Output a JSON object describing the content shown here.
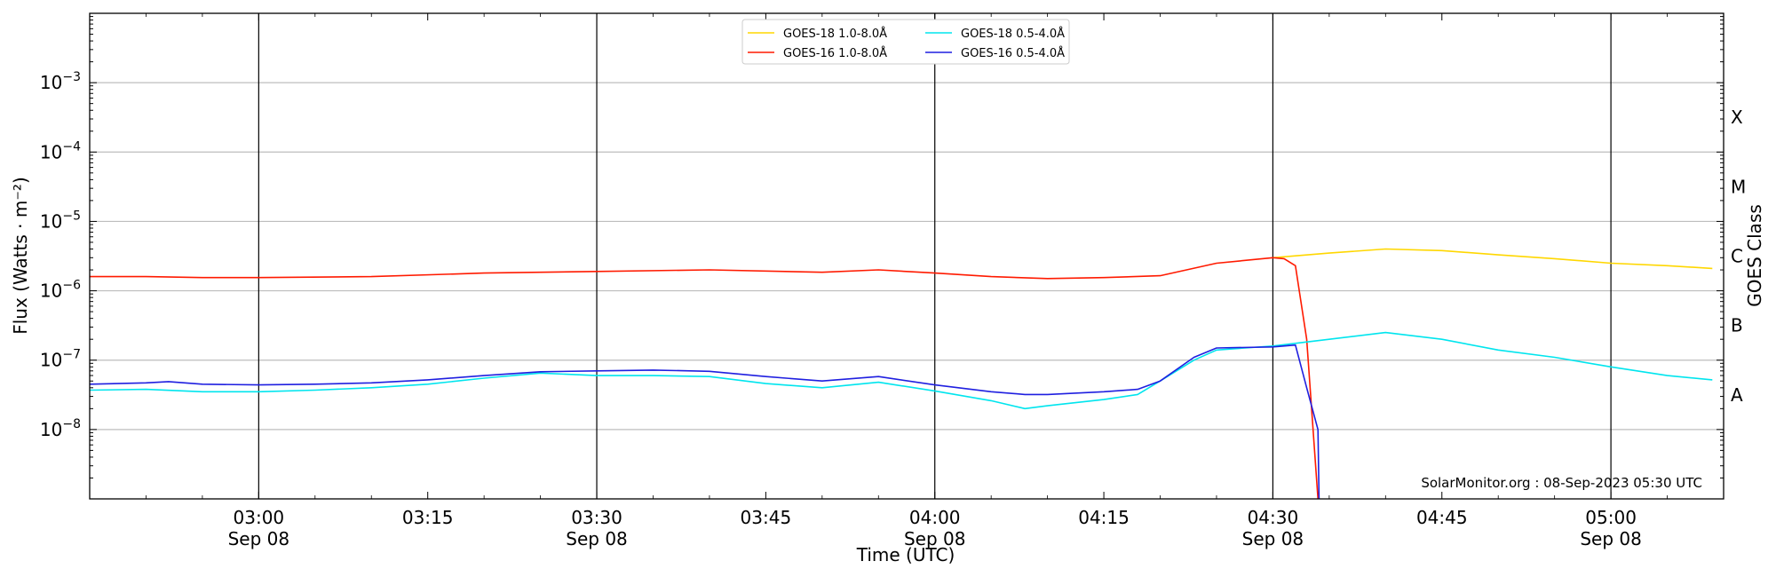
{
  "chart_data": {
    "type": "line",
    "xlabel": "Time (UTC)",
    "ylabel": "Flux (Watts · m⁻²)",
    "right_label": "GOES Class",
    "y_scale": "log",
    "ylim": [
      1e-09,
      0.01
    ],
    "xlim": [
      "2023-09-08 02:45",
      "2023-09-08 05:10"
    ],
    "grid": "horizontal at decades; vertical at half-hours",
    "legend_position": "top-center",
    "credit": "SolarMonitor.org : 08-Sep-2023 05:30 UTC",
    "x_ticks": [
      {
        "time": "03:00",
        "label": "03:00",
        "date": "Sep 08"
      },
      {
        "time": "03:15",
        "label": "03:15",
        "date": ""
      },
      {
        "time": "03:30",
        "label": "03:30",
        "date": "Sep 08"
      },
      {
        "time": "03:45",
        "label": "03:45",
        "date": ""
      },
      {
        "time": "04:00",
        "label": "04:00",
        "date": "Sep 08"
      },
      {
        "time": "04:15",
        "label": "04:15",
        "date": ""
      },
      {
        "time": "04:30",
        "label": "04:30",
        "date": "Sep 08"
      },
      {
        "time": "04:45",
        "label": "04:45",
        "date": ""
      },
      {
        "time": "05:00",
        "label": "05:00",
        "date": "Sep 08"
      }
    ],
    "y_ticks": [
      {
        "exp": -8,
        "base": "10",
        "power": "−8"
      },
      {
        "exp": -7,
        "base": "10",
        "power": "−7"
      },
      {
        "exp": -6,
        "base": "10",
        "power": "−6"
      },
      {
        "exp": -5,
        "base": "10",
        "power": "−5"
      },
      {
        "exp": -4,
        "base": "10",
        "power": "−4"
      },
      {
        "exp": -3,
        "base": "10",
        "power": "−3"
      }
    ],
    "goes_classes": [
      {
        "label": "A",
        "exp": -7.5
      },
      {
        "label": "B",
        "exp": -6.5
      },
      {
        "label": "C",
        "exp": -5.5
      },
      {
        "label": "M",
        "exp": -4.5
      },
      {
        "label": "X",
        "exp": -3.5
      }
    ],
    "series": [
      {
        "name": "GOES-18 1.0-8.0Å",
        "color": "#ffd700",
        "x": [
          "04:30",
          "04:35",
          "04:40",
          "04:45",
          "04:50",
          "04:55",
          "05:00",
          "05:05",
          "05:09"
        ],
        "y": [
          3e-06,
          3.5e-06,
          4e-06,
          3.8e-06,
          3.3e-06,
          2.9e-06,
          2.5e-06,
          2.3e-06,
          2.1e-06
        ]
      },
      {
        "name": "GOES-16 1.0-8.0Å",
        "color": "#ff1a00",
        "x": [
          "02:45",
          "02:50",
          "02:55",
          "03:00",
          "03:10",
          "03:20",
          "03:30",
          "03:40",
          "03:50",
          "03:55",
          "04:00",
          "04:05",
          "04:10",
          "04:15",
          "04:20",
          "04:25",
          "04:30",
          "04:31",
          "04:32",
          "04:33",
          "04:34"
        ],
        "y": [
          1.6e-06,
          1.6e-06,
          1.55e-06,
          1.55e-06,
          1.6e-06,
          1.8e-06,
          1.9e-06,
          2e-06,
          1.85e-06,
          2e-06,
          1.8e-06,
          1.6e-06,
          1.5e-06,
          1.55e-06,
          1.65e-06,
          2.5e-06,
          3e-06,
          2.9e-06,
          2.3e-06,
          2e-07,
          1e-09
        ]
      },
      {
        "name": "GOES-18 0.5-4.0Å",
        "color": "#00e5ee",
        "x": [
          "02:45",
          "02:50",
          "02:55",
          "03:00",
          "03:05",
          "03:10",
          "03:15",
          "03:20",
          "03:25",
          "03:30",
          "03:35",
          "03:40",
          "03:45",
          "03:50",
          "03:55",
          "04:00",
          "04:05",
          "04:08",
          "04:10",
          "04:15",
          "04:18",
          "04:20",
          "04:23",
          "04:25",
          "04:30",
          "04:35",
          "04:40",
          "04:45",
          "04:50",
          "04:55",
          "05:00",
          "05:05",
          "05:09"
        ],
        "y": [
          3.7e-08,
          3.8e-08,
          3.5e-08,
          3.5e-08,
          3.7e-08,
          4e-08,
          4.5e-08,
          5.5e-08,
          6.5e-08,
          6e-08,
          6e-08,
          5.8e-08,
          4.6e-08,
          4e-08,
          4.8e-08,
          3.6e-08,
          2.6e-08,
          2e-08,
          2.2e-08,
          2.7e-08,
          3.2e-08,
          5e-08,
          1e-07,
          1.4e-07,
          1.6e-07,
          2e-07,
          2.5e-07,
          2e-07,
          1.4e-07,
          1.1e-07,
          8e-08,
          6e-08,
          5.2e-08
        ]
      },
      {
        "name": "GOES-16 0.5-4.0Å",
        "color": "#1f1fe0",
        "x": [
          "02:45",
          "02:50",
          "02:52",
          "02:55",
          "03:00",
          "03:05",
          "03:10",
          "03:15",
          "03:20",
          "03:25",
          "03:30",
          "03:35",
          "03:40",
          "03:45",
          "03:50",
          "03:55",
          "04:00",
          "04:05",
          "04:08",
          "04:10",
          "04:15",
          "04:18",
          "04:20",
          "04:23",
          "04:25",
          "04:30",
          "04:32",
          "04:33",
          "04:34",
          "04:34.1"
        ],
        "y": [
          4.5e-08,
          4.7e-08,
          4.9e-08,
          4.5e-08,
          4.4e-08,
          4.5e-08,
          4.7e-08,
          5.2e-08,
          6e-08,
          6.8e-08,
          7e-08,
          7.2e-08,
          6.9e-08,
          5.8e-08,
          5e-08,
          5.8e-08,
          4.4e-08,
          3.5e-08,
          3.2e-08,
          3.2e-08,
          3.5e-08,
          3.8e-08,
          5e-08,
          1.1e-07,
          1.5e-07,
          1.55e-07,
          1.65e-07,
          4e-08,
          1e-08,
          1e-09
        ]
      }
    ]
  }
}
